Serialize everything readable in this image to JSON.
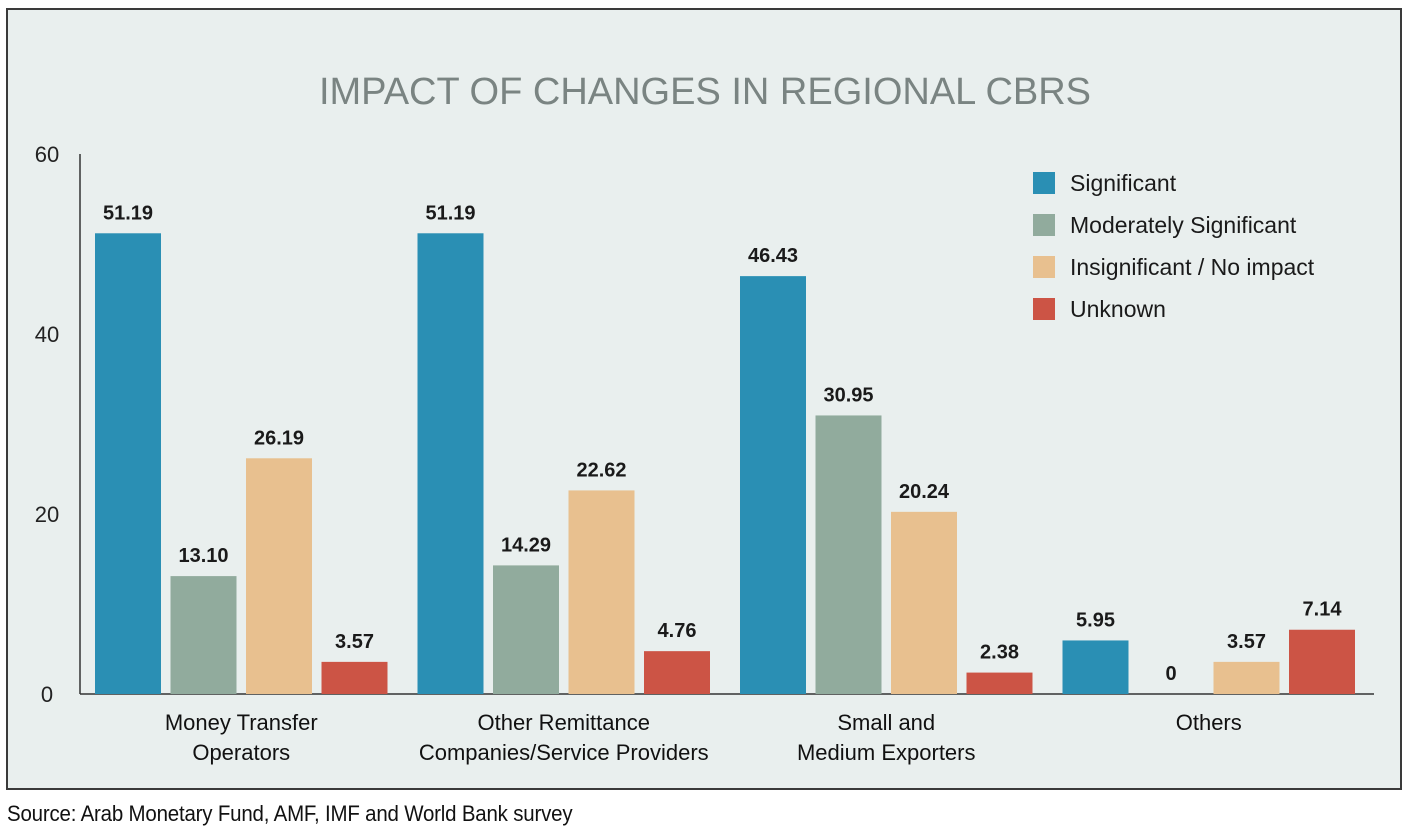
{
  "chart_data": {
    "type": "bar",
    "title": "IMPACT OF CHANGES IN REGIONAL CBRS",
    "xlabel": "",
    "ylabel": "",
    "ylim": [
      0,
      60
    ],
    "yticks": [
      "0",
      "20",
      "40",
      "60"
    ],
    "grid": false,
    "legend_position": "top-right",
    "categories": [
      [
        "Money Transfer",
        "Operators"
      ],
      [
        "Other Remittance",
        "Companies/Service Providers"
      ],
      [
        "Small and",
        "Medium Exporters"
      ],
      [
        "Others"
      ]
    ],
    "series": [
      {
        "name": "Significant",
        "color": "#2a8fb4",
        "values": [
          51.19,
          51.19,
          46.43,
          5.95
        ],
        "labels": [
          "51.19",
          "51.19",
          "46.43",
          "5.95"
        ]
      },
      {
        "name": "Moderately Significant",
        "color": "#91ab9d",
        "values": [
          13.1,
          14.29,
          30.95,
          0
        ],
        "labels": [
          "13.10",
          "14.29",
          "30.95",
          "0"
        ]
      },
      {
        "name": "Insignificant / No impact",
        "color": "#e8c08f",
        "values": [
          26.19,
          22.62,
          20.24,
          3.57
        ],
        "labels": [
          "26.19",
          "22.62",
          "20.24",
          "3.57"
        ]
      },
      {
        "name": "Unknown",
        "color": "#cc5445",
        "values": [
          3.57,
          4.76,
          2.38,
          7.14
        ],
        "labels": [
          "3.57",
          "4.76",
          "2.38",
          "7.14"
        ]
      }
    ]
  },
  "source": "Source: Arab Monetary Fund, AMF, IMF and World Bank survey"
}
